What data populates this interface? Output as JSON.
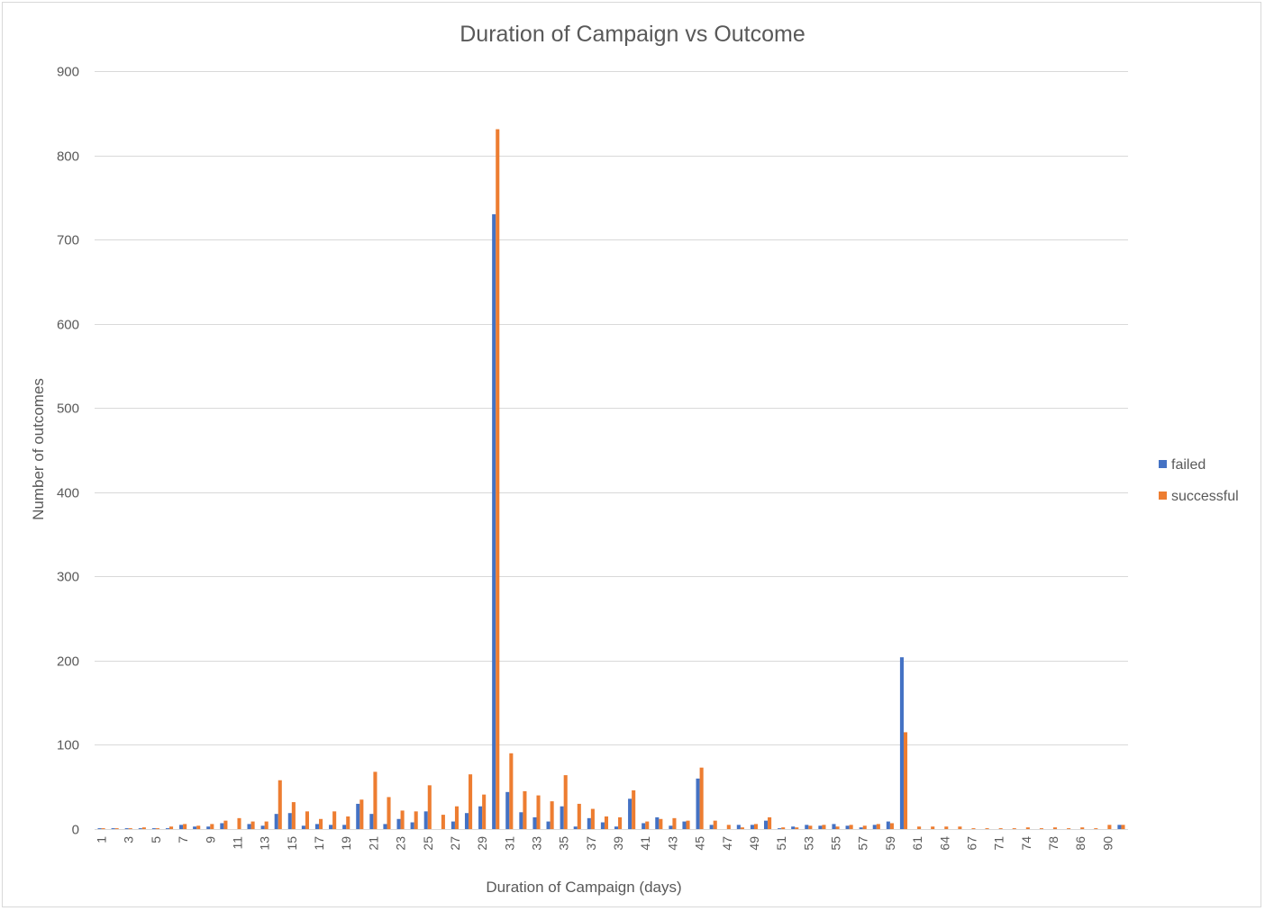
{
  "chart_data": {
    "type": "bar",
    "title": "Duration of Campaign vs Outcome",
    "xlabel": "Duration of Campaign (days)",
    "ylabel": "Number of outcomes",
    "ylim": [
      0,
      900
    ],
    "yticks": [
      0,
      100,
      200,
      300,
      400,
      500,
      600,
      700,
      800,
      900
    ],
    "grid": true,
    "legend_position": "right",
    "categories": [
      "1",
      "2",
      "3",
      "4",
      "5",
      "6",
      "7",
      "8",
      "9",
      "10",
      "11",
      "12",
      "13",
      "14",
      "15",
      "16",
      "17",
      "18",
      "19",
      "20",
      "21",
      "22",
      "23",
      "24",
      "25",
      "26",
      "27",
      "28",
      "29",
      "30",
      "31",
      "32",
      "33",
      "34",
      "35",
      "36",
      "37",
      "38",
      "39",
      "40",
      "41",
      "42",
      "43",
      "44",
      "45",
      "46",
      "47",
      "48",
      "49",
      "50",
      "51",
      "52",
      "53",
      "54",
      "55",
      "56",
      "57",
      "58",
      "59",
      "60",
      "61",
      "62",
      "64",
      "65",
      "67",
      "70",
      "71",
      "73",
      "74",
      "75",
      "78",
      "84",
      "86",
      "88",
      "90",
      "91"
    ],
    "shown_tick_labels": [
      "1",
      "3",
      "5",
      "7",
      "9",
      "11",
      "13",
      "15",
      "17",
      "19",
      "21",
      "23",
      "25",
      "27",
      "29",
      "31",
      "33",
      "35",
      "37",
      "39",
      "41",
      "43",
      "45",
      "47",
      "49",
      "51",
      "53",
      "55",
      "57",
      "59",
      "61",
      "64",
      "67",
      "71",
      "74",
      "78",
      "86",
      "90"
    ],
    "series": [
      {
        "name": "failed",
        "color": "#4472C4",
        "values": [
          1,
          1,
          1,
          1,
          1,
          1,
          5,
          3,
          3,
          7,
          0,
          6,
          4,
          18,
          19,
          4,
          6,
          5,
          5,
          30,
          18,
          6,
          12,
          8,
          21,
          0,
          9,
          19,
          27,
          730,
          44,
          20,
          14,
          9,
          27,
          3,
          13,
          8,
          3,
          36,
          7,
          14,
          4,
          9,
          60,
          5,
          0,
          5,
          5,
          10,
          1,
          3,
          5,
          4,
          6,
          4,
          2,
          5,
          9,
          204,
          0,
          0,
          0,
          0,
          0,
          0,
          0,
          0,
          0,
          0,
          0,
          0,
          0,
          0,
          0,
          5
        ]
      },
      {
        "name": "successful",
        "color": "#ED7D31",
        "values": [
          1,
          1,
          1,
          2,
          1,
          3,
          6,
          4,
          6,
          10,
          13,
          9,
          9,
          58,
          32,
          21,
          12,
          21,
          15,
          35,
          68,
          38,
          22,
          21,
          52,
          17,
          27,
          65,
          41,
          831,
          90,
          45,
          40,
          33,
          64,
          30,
          24,
          15,
          14,
          46,
          9,
          12,
          13,
          10,
          73,
          10,
          5,
          2,
          6,
          14,
          2,
          2,
          4,
          5,
          3,
          5,
          4,
          6,
          7,
          115,
          3,
          3,
          3,
          3,
          1,
          1,
          1,
          1,
          2,
          1,
          2,
          1,
          2,
          1,
          5,
          5
        ]
      }
    ]
  }
}
